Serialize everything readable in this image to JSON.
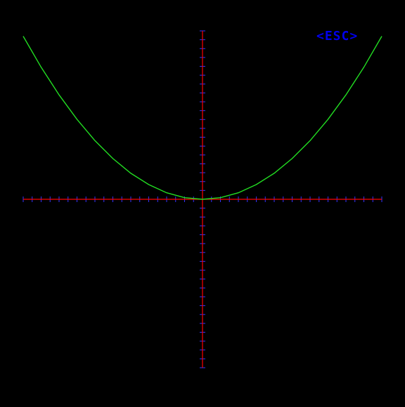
{
  "esc_button": {
    "label": "<ESC>"
  },
  "colors": {
    "background": "#000000",
    "axis": "#ff0000",
    "tick": "#3333ff",
    "curve": "#22dd22",
    "esc_text": "#0000ee"
  },
  "chart_data": {
    "type": "line",
    "title": "",
    "xlabel": "",
    "ylabel": "",
    "xlim": [
      -10,
      10
    ],
    "ylim": [
      -9.5,
      9.5
    ],
    "grid": false,
    "legend": "none",
    "tick_step": 0.5,
    "series": [
      {
        "x": [
          -10,
          -9,
          -8,
          -7,
          -6,
          -5,
          -4,
          -3,
          -2,
          -1,
          0,
          1,
          2,
          3,
          4,
          5,
          6,
          7,
          8,
          9,
          10
        ],
        "y": [
          9.2,
          7.45,
          5.89,
          4.51,
          3.31,
          2.3,
          1.47,
          0.83,
          0.37,
          0.09,
          0,
          0.09,
          0.37,
          0.83,
          1.47,
          2.3,
          3.31,
          4.51,
          5.89,
          7.45,
          9.2
        ]
      }
    ]
  }
}
